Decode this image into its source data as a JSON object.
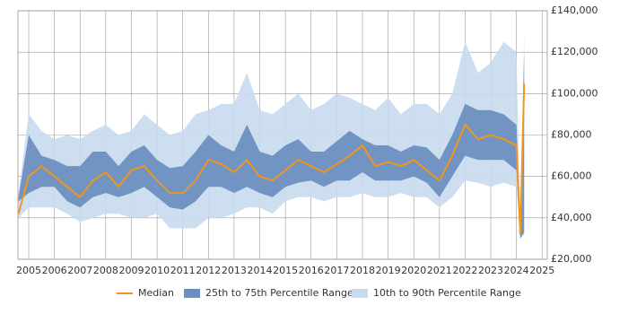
{
  "chart_data": {
    "type": "percentile-band",
    "x": [
      2004.6,
      2005,
      2005.5,
      2006,
      2006.5,
      2007,
      2007.5,
      2008,
      2008.5,
      2009,
      2009.5,
      2010,
      2010.5,
      2011,
      2011.5,
      2012,
      2012.5,
      2013,
      2013.5,
      2014,
      2014.5,
      2015,
      2015.5,
      2016,
      2016.5,
      2017,
      2017.5,
      2018,
      2018.5,
      2019,
      2019.5,
      2020,
      2020.5,
      2021,
      2021.5,
      2022,
      2022.5,
      2023,
      2023.5,
      2024,
      2024.15,
      2024.3
    ],
    "series": [
      {
        "name": "Median",
        "color": "#f0961e",
        "values": [
          42000,
          60000,
          65000,
          60000,
          55000,
          50000,
          58000,
          62000,
          55000,
          63000,
          65000,
          58000,
          52000,
          52000,
          58000,
          68000,
          66000,
          62000,
          68000,
          60000,
          58000,
          63000,
          68000,
          65000,
          62000,
          66000,
          70000,
          75000,
          65000,
          67000,
          65000,
          68000,
          63000,
          58000,
          70000,
          85000,
          78000,
          80000,
          78000,
          75000,
          32000,
          105000
        ]
      },
      {
        "name": "25th to 75th Percentile Range",
        "color": "#6d8fbf",
        "lower": [
          48000,
          52000,
          55000,
          55000,
          48000,
          45000,
          50000,
          52000,
          50000,
          52000,
          55000,
          50000,
          45000,
          44000,
          48000,
          55000,
          55000,
          52000,
          55000,
          52000,
          50000,
          55000,
          57000,
          58000,
          55000,
          58000,
          58000,
          62000,
          58000,
          58000,
          58000,
          60000,
          57000,
          50000,
          60000,
          70000,
          68000,
          68000,
          68000,
          63000,
          30000,
          33000
        ],
        "upper": [
          50000,
          80000,
          70000,
          68000,
          65000,
          65000,
          72000,
          72000,
          65000,
          72000,
          75000,
          68000,
          64000,
          65000,
          72000,
          80000,
          75000,
          72000,
          85000,
          72000,
          70000,
          75000,
          78000,
          72000,
          72000,
          77000,
          82000,
          78000,
          75000,
          75000,
          72000,
          75000,
          74000,
          68000,
          80000,
          95000,
          92000,
          92000,
          90000,
          85000,
          35000,
          122000
        ]
      },
      {
        "name": "10th to 90th Percentile Range",
        "color": "#c8daee",
        "lower": [
          40000,
          45000,
          45000,
          45000,
          42000,
          38000,
          40000,
          42000,
          42000,
          40000,
          40000,
          42000,
          35000,
          35000,
          35000,
          40000,
          40000,
          42000,
          45000,
          45000,
          42000,
          48000,
          50000,
          50000,
          48000,
          50000,
          50000,
          52000,
          50000,
          50000,
          52000,
          50000,
          50000,
          45000,
          50000,
          58000,
          57000,
          55000,
          57000,
          55000,
          30000,
          32000
        ],
        "upper": [
          52000,
          90000,
          82000,
          78000,
          80000,
          78000,
          82000,
          85000,
          80000,
          82000,
          90000,
          85000,
          80000,
          82000,
          90000,
          92000,
          95000,
          95000,
          110000,
          92000,
          90000,
          95000,
          100000,
          92000,
          95000,
          100000,
          98000,
          95000,
          92000,
          98000,
          90000,
          95000,
          95000,
          90000,
          100000,
          125000,
          110000,
          115000,
          125000,
          120000,
          35000,
          130000
        ]
      }
    ],
    "xlim": [
      2004.58,
      2025.2
    ],
    "xticks": [
      2005,
      2006,
      2007,
      2008,
      2009,
      2010,
      2011,
      2012,
      2013,
      2014,
      2015,
      2016,
      2017,
      2018,
      2019,
      2020,
      2021,
      2022,
      2023,
      2024,
      2025
    ],
    "ylim": [
      20000,
      140000
    ],
    "yticks": [
      {
        "value": 20000,
        "label": "£20,000"
      },
      {
        "value": 40000,
        "label": "£40,000"
      },
      {
        "value": 60000,
        "label": "£60,000"
      },
      {
        "value": 80000,
        "label": "£80,000"
      },
      {
        "value": 100000,
        "label": "£100,000"
      },
      {
        "value": 120000,
        "label": "£120,000"
      },
      {
        "value": 140000,
        "label": "£140,000"
      }
    ],
    "grid": true
  }
}
